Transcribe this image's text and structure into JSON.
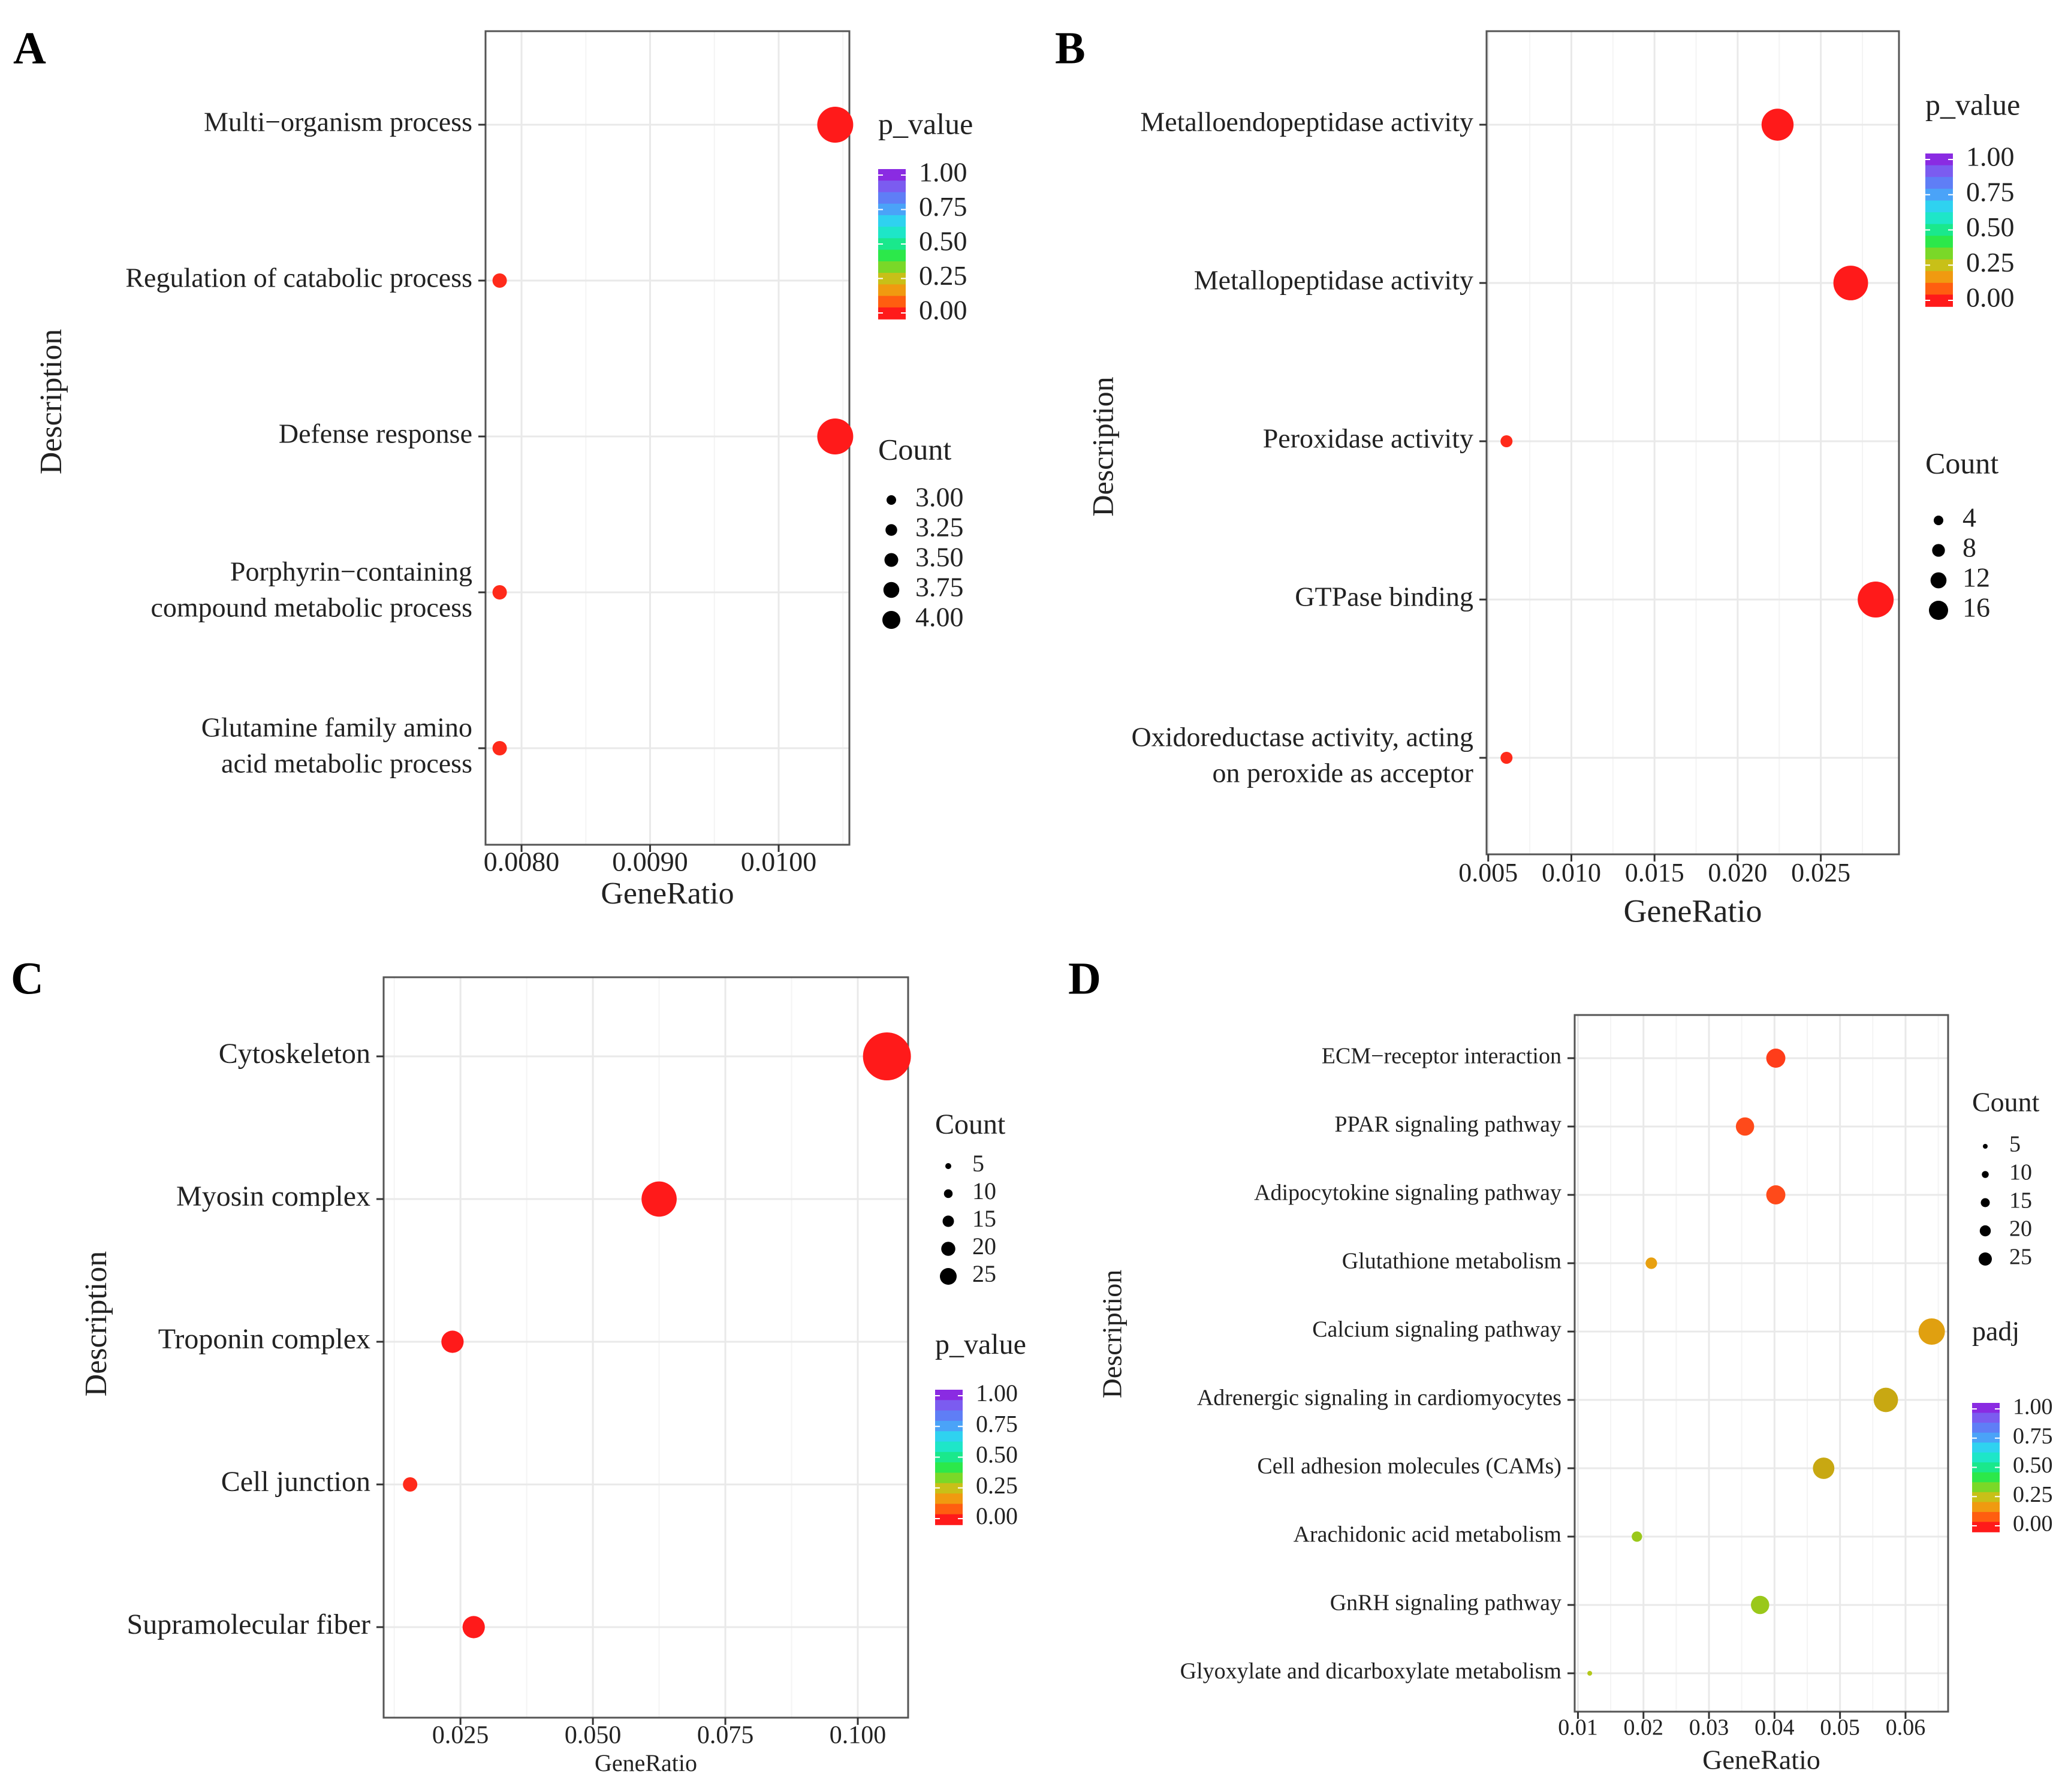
{
  "chart_data": [
    {
      "panel": "A",
      "type": "scatter",
      "xlabel": "GeneRatio",
      "ylabel": "Description",
      "xlim": [
        0.00772,
        0.01055
      ],
      "xticks": [
        0.008,
        0.009,
        0.01
      ],
      "xtick_labels": [
        "0.0080",
        "0.0090",
        "0.0100"
      ],
      "categories": [
        [
          "Multi−organism process"
        ],
        [
          "Regulation of catabolic process"
        ],
        [
          "Defense response"
        ],
        [
          "Porphyrin−containing",
          "compound metabolic process"
        ],
        [
          "Glutamine family amino",
          "acid metabolic process"
        ]
      ],
      "points": [
        {
          "x": 0.01044,
          "count": 4,
          "color": "#ff1a1a"
        },
        {
          "x": 0.00783,
          "count": 3,
          "color": "#ff2a1a"
        },
        {
          "x": 0.01044,
          "count": 4,
          "color": "#ff1a1a"
        },
        {
          "x": 0.00783,
          "count": 3,
          "color": "#ff2a1a"
        },
        {
          "x": 0.00783,
          "count": 3,
          "color": "#ff2a1a"
        }
      ],
      "color_legend": {
        "title": "p_value",
        "labels": [
          "1.00",
          "0.75",
          "0.50",
          "0.25",
          "0.00"
        ]
      },
      "size_legend": {
        "title": "Count",
        "labels": [
          "3.00",
          "3.25",
          "3.50",
          "3.75",
          "4.00"
        ],
        "values": [
          3.0,
          3.25,
          3.5,
          3.75,
          4.0
        ]
      }
    },
    {
      "panel": "B",
      "type": "scatter",
      "xlabel": "GeneRatio",
      "ylabel": "Description",
      "xlim": [
        0.0049,
        0.0297
      ],
      "xticks": [
        0.005,
        0.01,
        0.015,
        0.02,
        0.025
      ],
      "xtick_labels": [
        "0.005",
        "0.010",
        "0.015",
        "0.020",
        "0.025"
      ],
      "categories": [
        [
          "Metalloendopeptidase activity"
        ],
        [
          "Metallopeptidase activity"
        ],
        [
          "Peroxidase activity"
        ],
        [
          "GTPase binding"
        ],
        [
          "Oxidoreductase activity, acting",
          "on peroxide as acceptor"
        ]
      ],
      "points": [
        {
          "x": 0.0224,
          "count": 15,
          "color": "#ff1a1a"
        },
        {
          "x": 0.0268,
          "count": 17,
          "color": "#ff1a1a"
        },
        {
          "x": 0.0061,
          "count": 4,
          "color": "#ff2a1a"
        },
        {
          "x": 0.0283,
          "count": 18,
          "color": "#ff1a1a"
        },
        {
          "x": 0.0061,
          "count": 4,
          "color": "#ff2a1a"
        }
      ],
      "color_legend": {
        "title": "p_value",
        "labels": [
          "1.00",
          "0.75",
          "0.50",
          "0.25",
          "0.00"
        ]
      },
      "size_legend": {
        "title": "Count",
        "labels": [
          "4",
          "8",
          "12",
          "16"
        ],
        "values": [
          4,
          8,
          12,
          16
        ]
      }
    },
    {
      "panel": "C",
      "type": "scatter",
      "xlabel": "GeneRatio",
      "ylabel": "Description",
      "xlim": [
        0.0105,
        0.1095
      ],
      "xticks": [
        0.025,
        0.05,
        0.075,
        0.1
      ],
      "xtick_labels": [
        "0.025",
        "0.050",
        "0.075",
        "0.100"
      ],
      "categories": [
        [
          "Cytoskeleton"
        ],
        [
          "Myosin complex"
        ],
        [
          "Troponin complex"
        ],
        [
          "Cell junction"
        ],
        [
          "Supramolecular fiber"
        ]
      ],
      "points": [
        {
          "x": 0.1055,
          "count": 30,
          "color": "#ff1a1a"
        },
        {
          "x": 0.0625,
          "count": 18,
          "color": "#ff1a1a"
        },
        {
          "x": 0.0235,
          "count": 9,
          "color": "#ff1a1a"
        },
        {
          "x": 0.0155,
          "count": 5,
          "color": "#ff2a1a"
        },
        {
          "x": 0.0275,
          "count": 9,
          "color": "#ff1a1a"
        }
      ],
      "size_legend": {
        "title": "Count",
        "labels": [
          "5",
          "10",
          "15",
          "20",
          "25"
        ],
        "values": [
          5,
          10,
          15,
          20,
          25
        ]
      },
      "color_legend": {
        "title": "p_value",
        "labels": [
          "1.00",
          "0.75",
          "0.50",
          "0.25",
          "0.00"
        ]
      }
    },
    {
      "panel": "D",
      "type": "scatter",
      "xlabel": "GeneRatio",
      "ylabel": "Description",
      "xlim": [
        0.0095,
        0.0665
      ],
      "xticks": [
        0.01,
        0.02,
        0.03,
        0.04,
        0.05,
        0.06
      ],
      "xtick_labels": [
        "0.01",
        "0.02",
        "0.03",
        "0.04",
        "0.05",
        "0.06"
      ],
      "categories": [
        [
          "ECM−receptor interaction"
        ],
        [
          "PPAR signaling pathway"
        ],
        [
          "Adipocytokine signaling pathway"
        ],
        [
          "Glutathione metabolism"
        ],
        [
          "Calcium signaling pathway"
        ],
        [
          "Adrenergic signaling in cardiomyocytes"
        ],
        [
          "Cell adhesion molecules (CAMs)"
        ],
        [
          "Arachidonic acid metabolism"
        ],
        [
          "GnRH signaling pathway"
        ],
        [
          "Glyoxylate and dicarboxylate metabolism"
        ]
      ],
      "points": [
        {
          "x": 0.0402,
          "count": 17,
          "color": "#ff3d1a"
        },
        {
          "x": 0.0355,
          "count": 16,
          "color": "#ff4a1a"
        },
        {
          "x": 0.0402,
          "count": 17,
          "color": "#ff4a1a"
        },
        {
          "x": 0.0212,
          "count": 9,
          "color": "#e8a010"
        },
        {
          "x": 0.064,
          "count": 27,
          "color": "#e0a010"
        },
        {
          "x": 0.057,
          "count": 24,
          "color": "#c8a812"
        },
        {
          "x": 0.0475,
          "count": 20,
          "color": "#c8a812"
        },
        {
          "x": 0.019,
          "count": 8,
          "color": "#9ac81a"
        },
        {
          "x": 0.0378,
          "count": 16,
          "color": "#9ac81a"
        },
        {
          "x": 0.0118,
          "count": 4,
          "color": "#b4c81a"
        }
      ],
      "size_legend": {
        "title": "Count",
        "labels": [
          "5",
          "10",
          "15",
          "20",
          "25"
        ],
        "values": [
          5,
          10,
          15,
          20,
          25
        ]
      },
      "color_legend": {
        "title": "padj",
        "labels": [
          "1.00",
          "0.75",
          "0.50",
          "0.25",
          "0.00"
        ]
      }
    }
  ]
}
